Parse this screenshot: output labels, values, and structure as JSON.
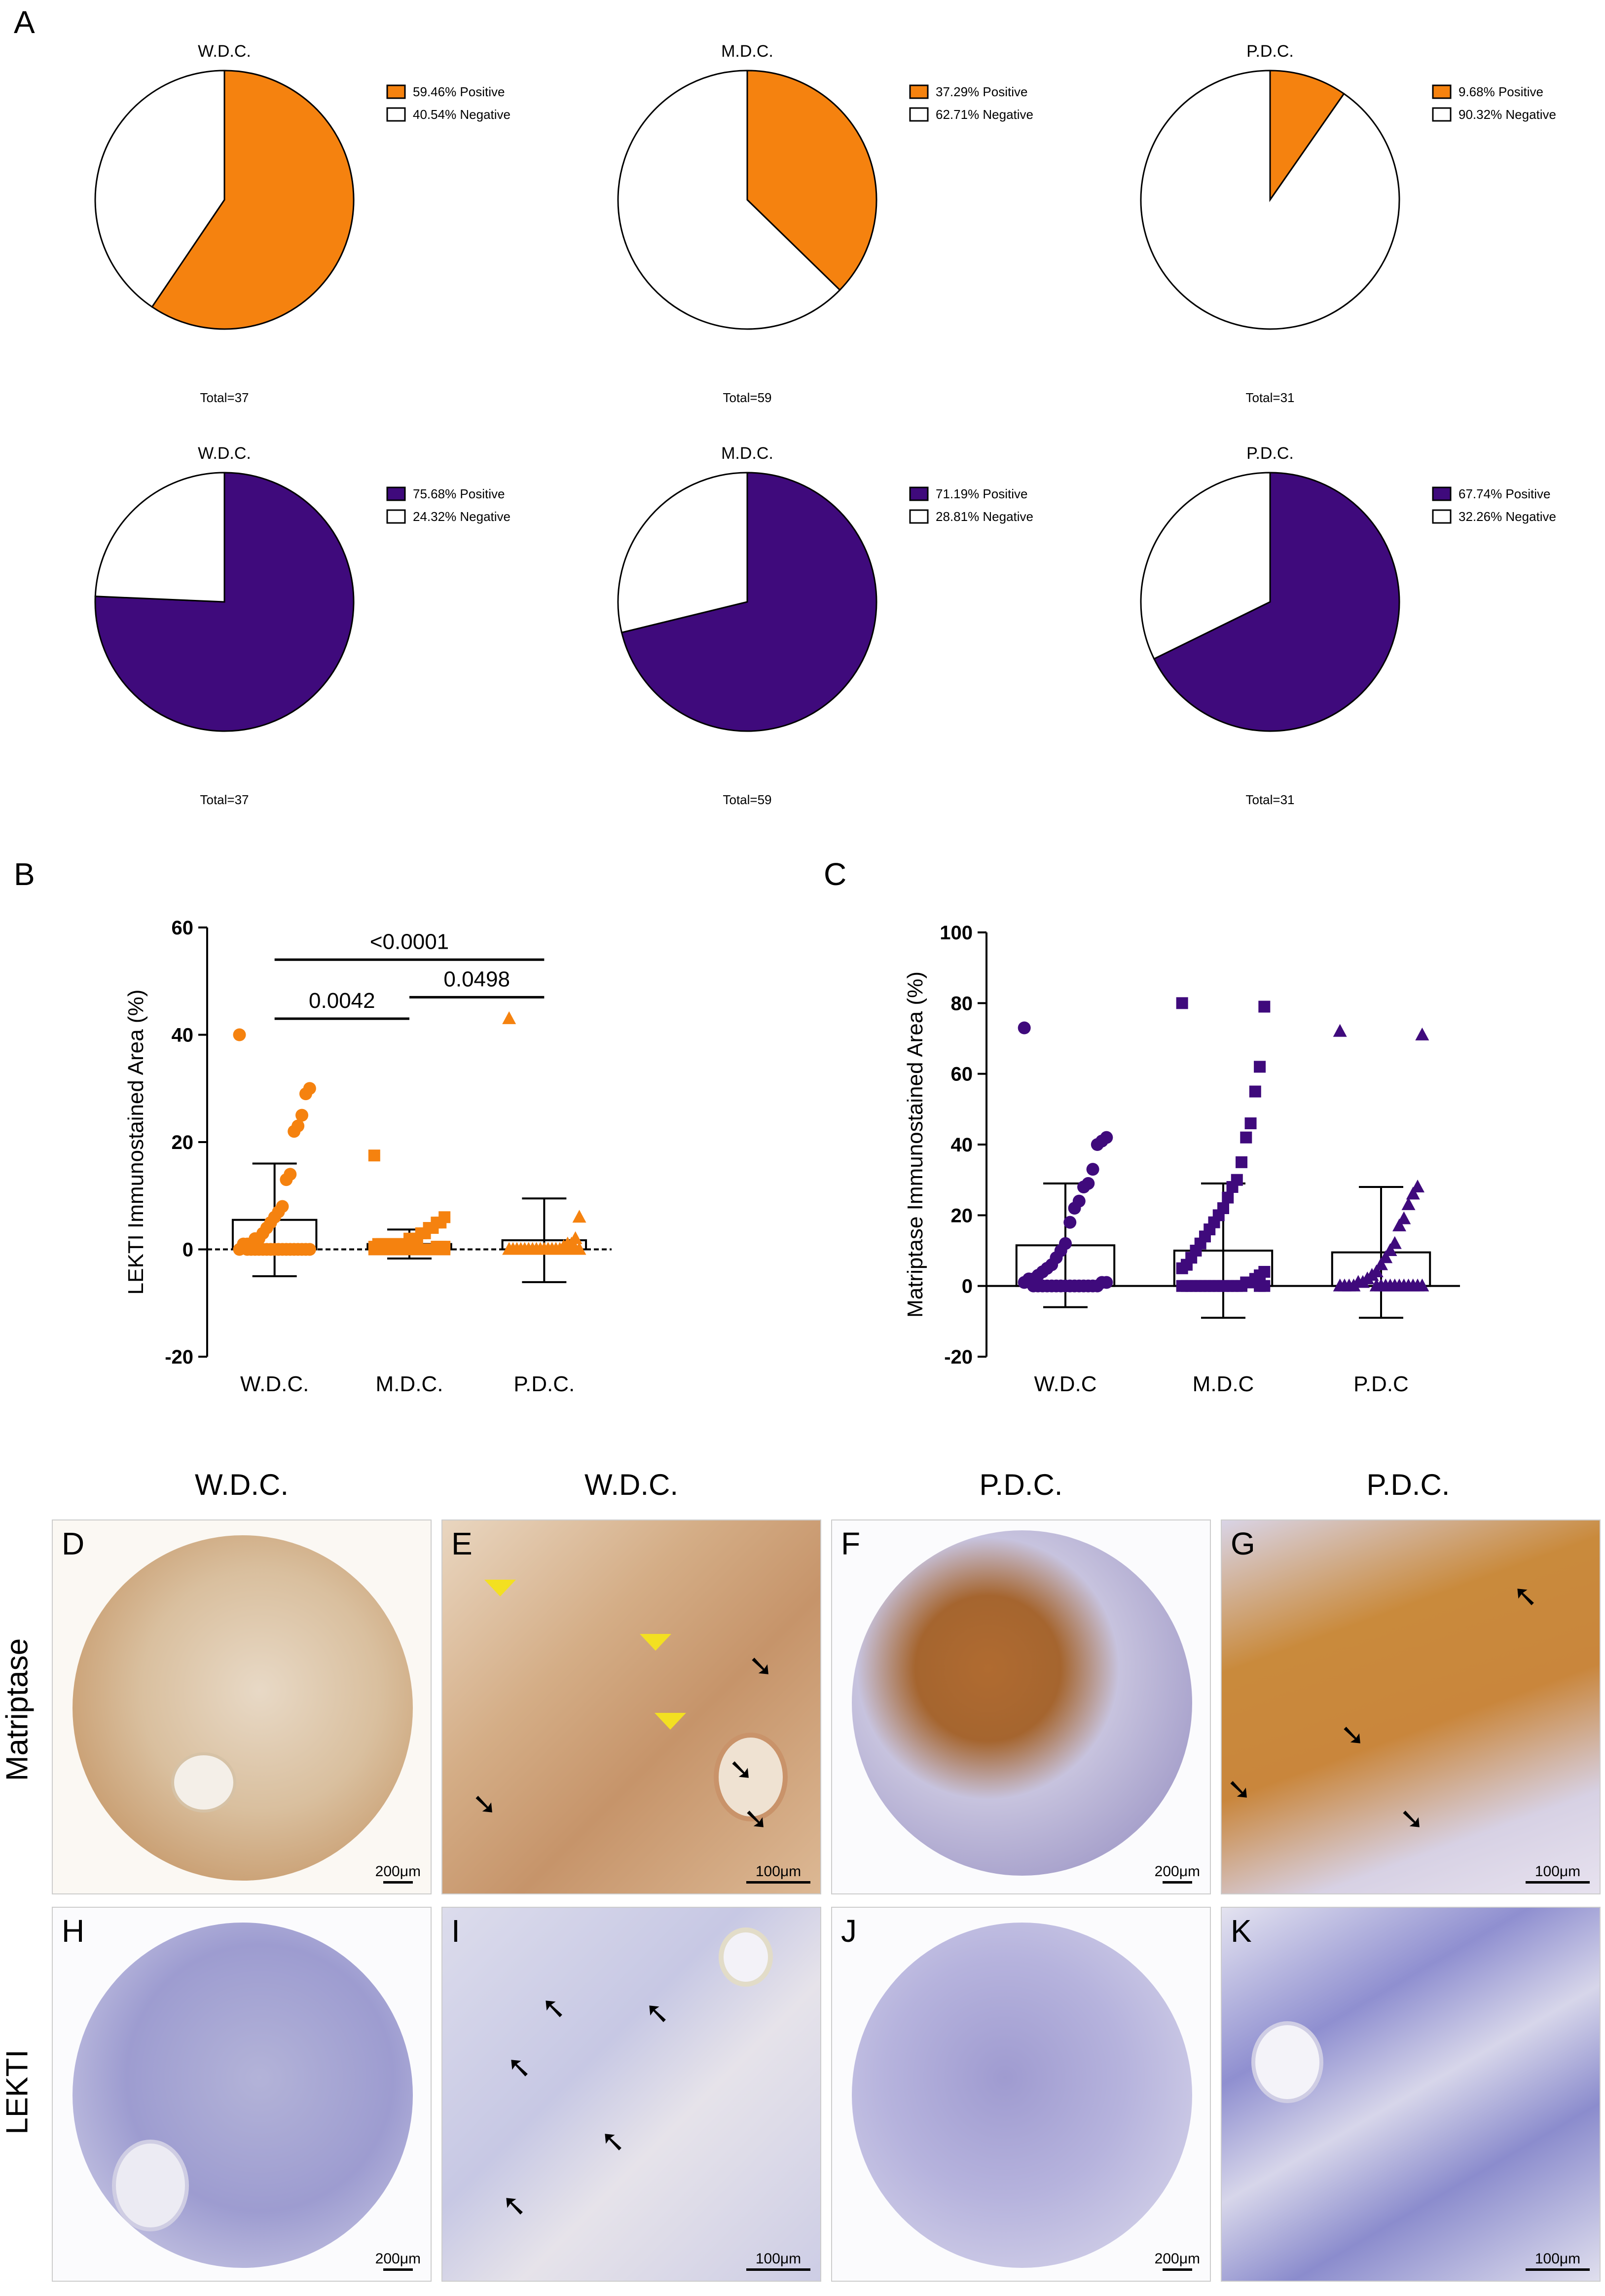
{
  "panels": {
    "A": "A",
    "B": "B",
    "C": "C",
    "D": "D",
    "E": "E",
    "F": "F",
    "G": "G",
    "H": "H",
    "I": "I",
    "J": "J",
    "K": "K"
  },
  "colors": {
    "matriptase": "#f5820f",
    "lekti": "#3f0a7c",
    "negative": "#ffffff"
  },
  "chart_data": [
    {
      "type": "pie",
      "title": "W.D.C.",
      "total": "Total=37",
      "slices": [
        {
          "label": "Positive",
          "value": 59.46,
          "text": "59.46%  Positive",
          "color": "#f5820f"
        },
        {
          "label": "Negative",
          "value": 40.54,
          "text": "40.54%  Negative",
          "color": "#ffffff"
        }
      ]
    },
    {
      "type": "pie",
      "title": "M.D.C.",
      "total": "Total=59",
      "slices": [
        {
          "label": "Positive",
          "value": 37.29,
          "text": "37.29%  Positive",
          "color": "#f5820f"
        },
        {
          "label": "Negative",
          "value": 62.71,
          "text": "62.71%  Negative",
          "color": "#ffffff"
        }
      ]
    },
    {
      "type": "pie",
      "title": "P.D.C.",
      "total": "Total=31",
      "slices": [
        {
          "label": "Positive",
          "value": 9.68,
          "text": "9.68%  Positive",
          "color": "#f5820f"
        },
        {
          "label": "Negative",
          "value": 90.32,
          "text": "90.32%  Negative",
          "color": "#ffffff"
        }
      ]
    },
    {
      "type": "pie",
      "title": "W.D.C.",
      "total": "Total=37",
      "slices": [
        {
          "label": "Positive",
          "value": 75.68,
          "text": "75.68%  Positive",
          "color": "#3f0a7c"
        },
        {
          "label": "Negative",
          "value": 24.32,
          "text": "24.32%  Negative",
          "color": "#ffffff"
        }
      ]
    },
    {
      "type": "pie",
      "title": "M.D.C.",
      "total": "Total=59",
      "slices": [
        {
          "label": "Positive",
          "value": 71.19,
          "text": "71.19%  Positive",
          "color": "#3f0a7c"
        },
        {
          "label": "Negative",
          "value": 28.81,
          "text": "28.81%  Negative",
          "color": "#ffffff"
        }
      ]
    },
    {
      "type": "pie",
      "title": "P.D.C.",
      "total": "Total=31",
      "slices": [
        {
          "label": "Positive",
          "value": 67.74,
          "text": "67.74%  Positive",
          "color": "#3f0a7c"
        },
        {
          "label": "Negative",
          "value": 32.26,
          "text": "32.26%  Negative",
          "color": "#ffffff"
        }
      ]
    },
    {
      "type": "bar",
      "ylabel": "LEKTI Immunostained Area (%)",
      "ylim": [
        -20,
        60
      ],
      "yticks": [
        "-20",
        "0",
        "20",
        "40",
        "60"
      ],
      "categories": [
        "W.D.C.",
        "M.D.C.",
        "P.D.C."
      ],
      "means": [
        5.5,
        1.0,
        1.7
      ],
      "sd": [
        10.5,
        2.7,
        7.8
      ],
      "color": "#f5820f",
      "markers": [
        "circle",
        "square",
        "triangle"
      ],
      "points": [
        [
          40,
          30,
          29,
          25,
          23,
          22,
          14,
          13,
          8,
          7,
          6,
          5,
          4,
          3,
          2,
          2,
          1,
          1,
          1,
          0,
          0,
          0,
          0,
          0,
          0,
          0,
          0,
          0,
          0,
          0,
          0,
          0,
          0,
          0,
          0,
          0,
          0
        ],
        [
          17.5,
          6,
          5,
          5,
          4,
          4,
          3,
          3,
          2,
          2,
          2,
          1,
          1,
          1,
          1,
          1,
          1,
          1,
          1,
          0.5,
          0.5,
          0.5,
          0.5,
          0,
          0,
          0,
          0,
          0,
          0,
          0,
          0,
          0,
          0,
          0,
          0,
          0,
          0,
          0,
          0,
          0,
          0
        ],
        [
          43,
          6,
          2,
          1,
          1,
          0.5,
          0,
          0,
          0,
          0,
          0,
          0,
          0,
          0,
          0,
          0,
          0,
          0,
          0,
          0,
          0,
          0,
          0,
          0,
          0,
          0,
          0,
          0,
          0,
          0,
          0
        ]
      ],
      "annotations": [
        {
          "text": "<0.0001",
          "from": 0,
          "to": 2,
          "y": 54
        },
        {
          "text": "0.0042",
          "from": 0,
          "to": 1,
          "y": 43
        },
        {
          "text": "0.0498",
          "from": 1,
          "to": 2,
          "y": 47
        }
      ]
    },
    {
      "type": "bar",
      "ylabel": "Matriptase Immunostained Area (%)",
      "ylim": [
        -20,
        100
      ],
      "yticks": [
        "-20",
        "0",
        "20",
        "40",
        "60",
        "80",
        "100"
      ],
      "categories": [
        "W.D.C",
        "M.D.C",
        "P.D.C"
      ],
      "means": [
        11.5,
        10,
        9.5
      ],
      "sd": [
        17.5,
        19,
        18.5
      ],
      "color": "#3f0a7c",
      "markers": [
        "circle",
        "square",
        "triangle"
      ],
      "points": [
        [
          73,
          42,
          41,
          40,
          33,
          29,
          28,
          24,
          22,
          18,
          12,
          10,
          8,
          6,
          5,
          4,
          3,
          2,
          2,
          1,
          1,
          1,
          0,
          0,
          0,
          0,
          0,
          0,
          0,
          0,
          0,
          0,
          0,
          0,
          0,
          0,
          0
        ],
        [
          80,
          79,
          62,
          55,
          46,
          42,
          35,
          30,
          28,
          25,
          22,
          20,
          18,
          16,
          14,
          12,
          10,
          8,
          6,
          5,
          4,
          3,
          2,
          1,
          1,
          0,
          0,
          0,
          0,
          0,
          0,
          0,
          0,
          0,
          0,
          0,
          0,
          0,
          0,
          0,
          0
        ],
        [
          72,
          71,
          28,
          26,
          23,
          19,
          17,
          12,
          10,
          8,
          6,
          4,
          3,
          2,
          1,
          1,
          0,
          0,
          0,
          0,
          0,
          0,
          0,
          0,
          0,
          0,
          0,
          0,
          0,
          0,
          0
        ]
      ]
    }
  ],
  "micro": {
    "col_heads": [
      "W.D.C.",
      "W.D.C.",
      "P.D.C.",
      "P.D.C."
    ],
    "row_heads": [
      "Matriptase",
      "LEKTI"
    ],
    "scale_200": "200μm",
    "scale_100": "100μm"
  }
}
